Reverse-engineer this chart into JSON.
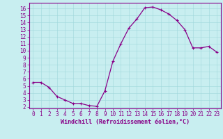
{
  "x": [
    0,
    1,
    2,
    3,
    4,
    5,
    6,
    7,
    8,
    9,
    10,
    11,
    12,
    13,
    14,
    15,
    16,
    17,
    18,
    19,
    20,
    21,
    22,
    23
  ],
  "y": [
    5.5,
    5.5,
    4.8,
    3.5,
    3.0,
    2.5,
    2.5,
    2.2,
    2.1,
    4.3,
    8.5,
    11.0,
    13.2,
    14.5,
    16.1,
    16.2,
    15.8,
    15.2,
    14.3,
    13.0,
    10.4,
    10.4,
    10.6,
    9.8
  ],
  "line_color": "#880088",
  "marker": "+",
  "marker_size": 3.5,
  "marker_linewidth": 0.8,
  "bg_color": "#c8eef0",
  "grid_color": "#a0d8dc",
  "xlabel": "Windchill (Refroidissement éolien,°C)",
  "xlabel_color": "#880088",
  "xlim": [
    -0.5,
    23.5
  ],
  "ylim": [
    1.8,
    16.8
  ],
  "yticks": [
    2,
    3,
    4,
    5,
    6,
    7,
    8,
    9,
    10,
    11,
    12,
    13,
    14,
    15,
    16
  ],
  "xticks": [
    0,
    1,
    2,
    3,
    4,
    5,
    6,
    7,
    8,
    9,
    10,
    11,
    12,
    13,
    14,
    15,
    16,
    17,
    18,
    19,
    20,
    21,
    22,
    23
  ],
  "tick_color": "#880088",
  "spine_color": "#880088",
  "line_width": 0.9,
  "label_fontsize": 5.5,
  "tick_fontsize": 5.5,
  "xlabel_fontsize": 6.0
}
